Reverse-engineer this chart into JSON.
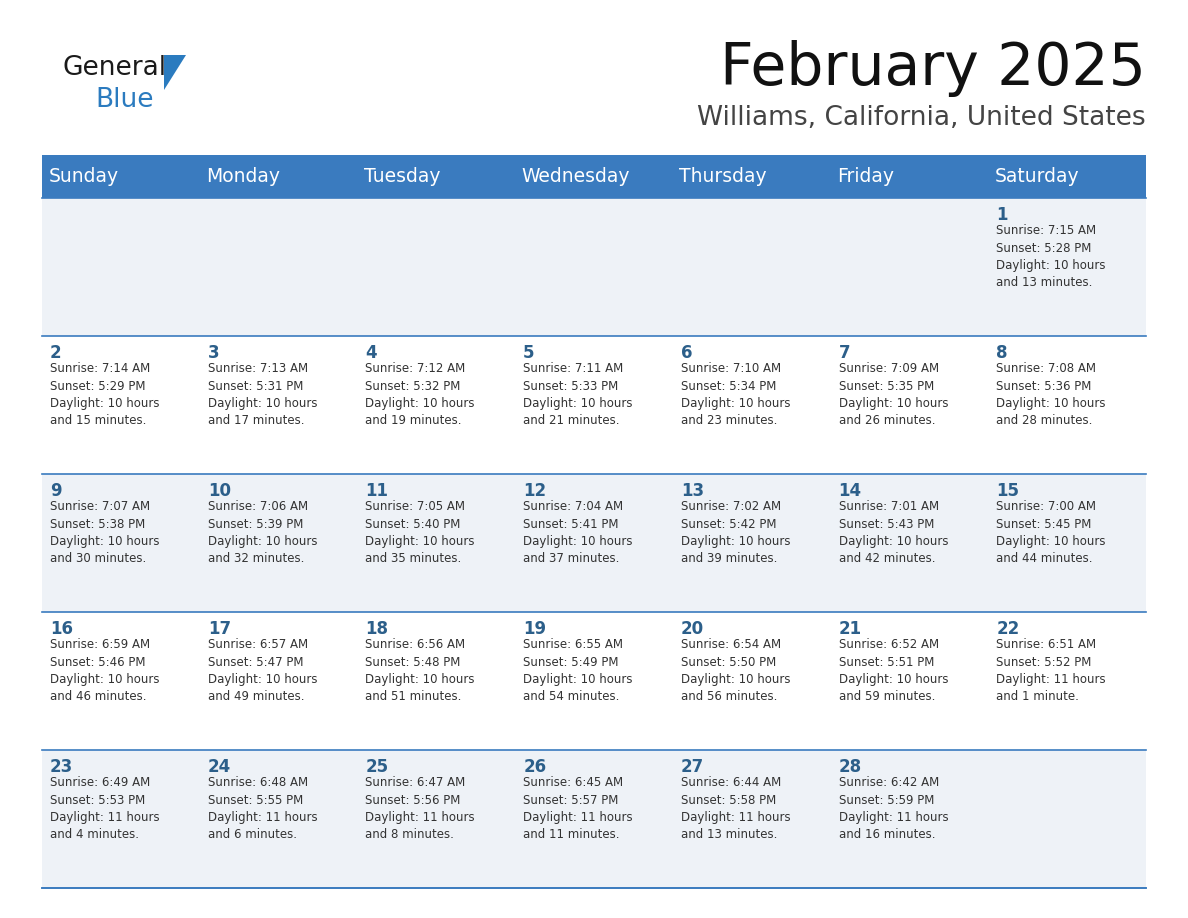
{
  "title": "February 2025",
  "subtitle": "Williams, California, United States",
  "header_color": "#3a7bbf",
  "header_text_color": "#ffffff",
  "row_odd_bg": "#eef2f7",
  "row_even_bg": "#ffffff",
  "day_number_color": "#2c5f8a",
  "text_color": "#333333",
  "line_color": "#3a7bbf",
  "days_of_week": [
    "Sunday",
    "Monday",
    "Tuesday",
    "Wednesday",
    "Thursday",
    "Friday",
    "Saturday"
  ],
  "weeks": [
    [
      {
        "day": null,
        "info": null
      },
      {
        "day": null,
        "info": null
      },
      {
        "day": null,
        "info": null
      },
      {
        "day": null,
        "info": null
      },
      {
        "day": null,
        "info": null
      },
      {
        "day": null,
        "info": null
      },
      {
        "day": 1,
        "info": "Sunrise: 7:15 AM\nSunset: 5:28 PM\nDaylight: 10 hours\nand 13 minutes."
      }
    ],
    [
      {
        "day": 2,
        "info": "Sunrise: 7:14 AM\nSunset: 5:29 PM\nDaylight: 10 hours\nand 15 minutes."
      },
      {
        "day": 3,
        "info": "Sunrise: 7:13 AM\nSunset: 5:31 PM\nDaylight: 10 hours\nand 17 minutes."
      },
      {
        "day": 4,
        "info": "Sunrise: 7:12 AM\nSunset: 5:32 PM\nDaylight: 10 hours\nand 19 minutes."
      },
      {
        "day": 5,
        "info": "Sunrise: 7:11 AM\nSunset: 5:33 PM\nDaylight: 10 hours\nand 21 minutes."
      },
      {
        "day": 6,
        "info": "Sunrise: 7:10 AM\nSunset: 5:34 PM\nDaylight: 10 hours\nand 23 minutes."
      },
      {
        "day": 7,
        "info": "Sunrise: 7:09 AM\nSunset: 5:35 PM\nDaylight: 10 hours\nand 26 minutes."
      },
      {
        "day": 8,
        "info": "Sunrise: 7:08 AM\nSunset: 5:36 PM\nDaylight: 10 hours\nand 28 minutes."
      }
    ],
    [
      {
        "day": 9,
        "info": "Sunrise: 7:07 AM\nSunset: 5:38 PM\nDaylight: 10 hours\nand 30 minutes."
      },
      {
        "day": 10,
        "info": "Sunrise: 7:06 AM\nSunset: 5:39 PM\nDaylight: 10 hours\nand 32 minutes."
      },
      {
        "day": 11,
        "info": "Sunrise: 7:05 AM\nSunset: 5:40 PM\nDaylight: 10 hours\nand 35 minutes."
      },
      {
        "day": 12,
        "info": "Sunrise: 7:04 AM\nSunset: 5:41 PM\nDaylight: 10 hours\nand 37 minutes."
      },
      {
        "day": 13,
        "info": "Sunrise: 7:02 AM\nSunset: 5:42 PM\nDaylight: 10 hours\nand 39 minutes."
      },
      {
        "day": 14,
        "info": "Sunrise: 7:01 AM\nSunset: 5:43 PM\nDaylight: 10 hours\nand 42 minutes."
      },
      {
        "day": 15,
        "info": "Sunrise: 7:00 AM\nSunset: 5:45 PM\nDaylight: 10 hours\nand 44 minutes."
      }
    ],
    [
      {
        "day": 16,
        "info": "Sunrise: 6:59 AM\nSunset: 5:46 PM\nDaylight: 10 hours\nand 46 minutes."
      },
      {
        "day": 17,
        "info": "Sunrise: 6:57 AM\nSunset: 5:47 PM\nDaylight: 10 hours\nand 49 minutes."
      },
      {
        "day": 18,
        "info": "Sunrise: 6:56 AM\nSunset: 5:48 PM\nDaylight: 10 hours\nand 51 minutes."
      },
      {
        "day": 19,
        "info": "Sunrise: 6:55 AM\nSunset: 5:49 PM\nDaylight: 10 hours\nand 54 minutes."
      },
      {
        "day": 20,
        "info": "Sunrise: 6:54 AM\nSunset: 5:50 PM\nDaylight: 10 hours\nand 56 minutes."
      },
      {
        "day": 21,
        "info": "Sunrise: 6:52 AM\nSunset: 5:51 PM\nDaylight: 10 hours\nand 59 minutes."
      },
      {
        "day": 22,
        "info": "Sunrise: 6:51 AM\nSunset: 5:52 PM\nDaylight: 11 hours\nand 1 minute."
      }
    ],
    [
      {
        "day": 23,
        "info": "Sunrise: 6:49 AM\nSunset: 5:53 PM\nDaylight: 11 hours\nand 4 minutes."
      },
      {
        "day": 24,
        "info": "Sunrise: 6:48 AM\nSunset: 5:55 PM\nDaylight: 11 hours\nand 6 minutes."
      },
      {
        "day": 25,
        "info": "Sunrise: 6:47 AM\nSunset: 5:56 PM\nDaylight: 11 hours\nand 8 minutes."
      },
      {
        "day": 26,
        "info": "Sunrise: 6:45 AM\nSunset: 5:57 PM\nDaylight: 11 hours\nand 11 minutes."
      },
      {
        "day": 27,
        "info": "Sunrise: 6:44 AM\nSunset: 5:58 PM\nDaylight: 11 hours\nand 13 minutes."
      },
      {
        "day": 28,
        "info": "Sunrise: 6:42 AM\nSunset: 5:59 PM\nDaylight: 11 hours\nand 16 minutes."
      },
      {
        "day": null,
        "info": null
      }
    ]
  ]
}
